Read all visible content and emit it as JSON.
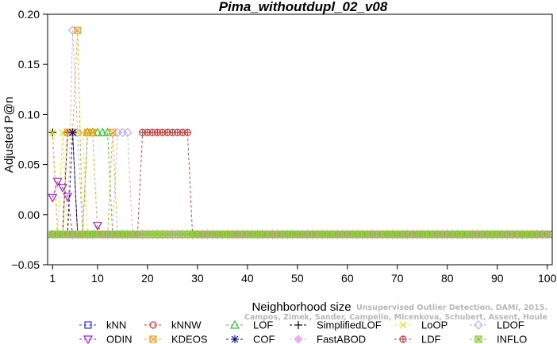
{
  "chart_data": {
    "type": "line",
    "title": "Pima_withoutdupl_02_v08",
    "xlabel": "Neighborhood size",
    "ylabel": "Adjusted P@n",
    "xlim": [
      0,
      101
    ],
    "ylim": [
      -0.05,
      0.2
    ],
    "xticks": [
      1,
      10,
      20,
      30,
      40,
      50,
      60,
      70,
      80,
      90,
      100
    ],
    "yticks": [
      -0.05,
      0.0,
      0.05,
      0.1,
      0.15,
      0.2
    ],
    "ytick_labels": [
      "−0.05",
      "0.00",
      "0.05",
      "0.10",
      "0.15",
      "0.20"
    ],
    "grid": false,
    "legend_position": "bottom",
    "baseline": -0.0196,
    "series": [
      {
        "name": "kNN",
        "color": "#3030d8",
        "marker": "square",
        "points": []
      },
      {
        "name": "kNNW",
        "color": "#e03030",
        "marker": "circle",
        "points": []
      },
      {
        "name": "LOF",
        "color": "#30c830",
        "marker": "triangle-up",
        "points": [
          [
            8,
            0.082
          ],
          [
            9,
            0.082
          ],
          [
            10,
            0.082
          ],
          [
            11,
            0.082
          ],
          [
            12,
            0.082
          ]
        ]
      },
      {
        "name": "SimplifiedLOF",
        "color": "#000000",
        "marker": "plus",
        "points": [
          [
            1,
            0.082
          ],
          [
            4,
            0.082
          ],
          [
            5,
            0.082
          ]
        ]
      },
      {
        "name": "LoOP",
        "color": "#e8e020",
        "marker": "x",
        "points": [
          [
            1,
            0.082
          ],
          [
            3,
            0.082
          ],
          [
            5,
            0.082
          ],
          [
            6,
            0.082
          ],
          [
            7,
            0.082
          ]
        ]
      },
      {
        "name": "LDOF",
        "color": "#b8b0e8",
        "marker": "diamond",
        "points": [
          [
            5,
            0.184
          ],
          [
            6,
            0.082
          ],
          [
            14,
            0.082
          ],
          [
            15,
            0.082
          ],
          [
            16,
            0.082
          ]
        ]
      },
      {
        "name": "ODIN",
        "color": "#a020d0",
        "marker": "triangle-down",
        "points": [
          [
            1,
            0.017
          ],
          [
            2,
            0.033
          ],
          [
            3,
            0.027
          ],
          [
            4,
            0.018
          ],
          [
            10,
            -0.011
          ]
        ]
      },
      {
        "name": "KDEOS",
        "color": "#f0a020",
        "marker": "boxed-x",
        "points": [
          [
            4,
            0.082
          ],
          [
            5,
            0.082
          ],
          [
            6,
            0.184
          ],
          [
            8,
            0.082
          ],
          [
            9,
            0.082
          ],
          [
            13,
            0.082
          ]
        ]
      },
      {
        "name": "COF",
        "color": "#101090",
        "marker": "asterisk",
        "points": [
          [
            5,
            0.082
          ]
        ]
      },
      {
        "name": "FastABOD",
        "color": "#f0b0f0",
        "marker": "diamond-filled",
        "points": []
      },
      {
        "name": "LDF",
        "color": "#c04040",
        "marker": "circle-plus",
        "points": [
          [
            19,
            0.082
          ],
          [
            20,
            0.082
          ],
          [
            21,
            0.082
          ],
          [
            22,
            0.082
          ],
          [
            23,
            0.082
          ],
          [
            24,
            0.082
          ],
          [
            25,
            0.082
          ],
          [
            26,
            0.082
          ],
          [
            27,
            0.082
          ],
          [
            28,
            0.082
          ]
        ]
      },
      {
        "name": "INFLO",
        "color": "#90c840",
        "marker": "boxed-asterisk",
        "points": []
      }
    ]
  },
  "watermark": {
    "line1": "Unsupervised Outlier Detection. DAMI, 2015.",
    "line2": "Campos, Zimek, Sander, Campello, Micenkova, Schubert, Assent, Houle"
  }
}
